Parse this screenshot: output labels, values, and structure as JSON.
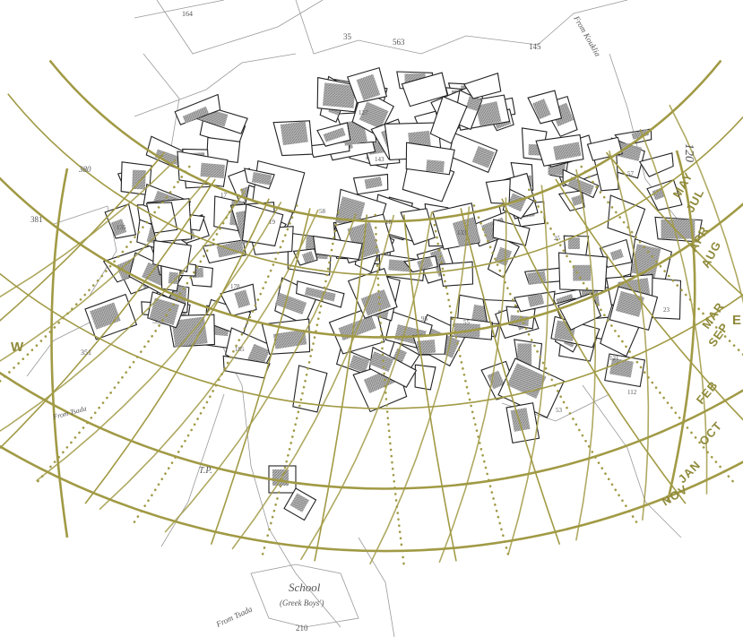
{
  "compass": {
    "west": "W",
    "east": "E"
  },
  "months": [
    "MAY",
    "JUL",
    "APR",
    "AUG",
    "MAR",
    "SEP",
    "FEB",
    "OCT",
    "JAN",
    "NOV"
  ],
  "places": {
    "school": "School",
    "school_sub": "(Greek Boys')",
    "from_right": "From Kouklia",
    "from_bottom": "From Tsada",
    "from_left": "From Tsada"
  },
  "parcel_numbers": [
    "164",
    "35",
    "563",
    "145",
    "380",
    "381",
    "351",
    "120",
    "210",
    "185",
    "178",
    "17",
    "135",
    "23",
    "55",
    "57",
    "58",
    "95",
    "133",
    "143",
    "18",
    "19",
    "25",
    "112",
    "121",
    "127",
    "53",
    "T.P."
  ],
  "colors": {
    "sunpath": "#a19a45",
    "outline": "#222222",
    "hatch": "#8a8a8a"
  }
}
